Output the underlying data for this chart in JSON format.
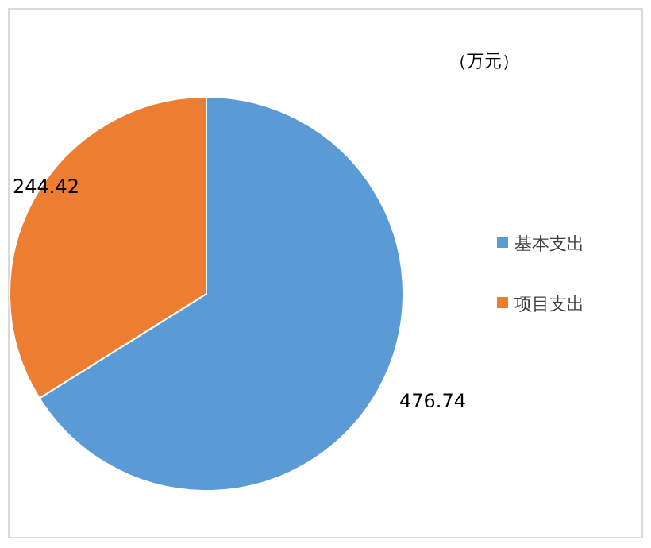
{
  "chart_data": {
    "type": "pie",
    "categories": [
      "基本支出",
      "项目支出"
    ],
    "values": [
      476.74,
      244.42
    ],
    "colors": [
      "#5b9bd5",
      "#ed7d31"
    ],
    "data_labels": true,
    "legend": "right",
    "annotations": [
      "（万元）"
    ]
  }
}
